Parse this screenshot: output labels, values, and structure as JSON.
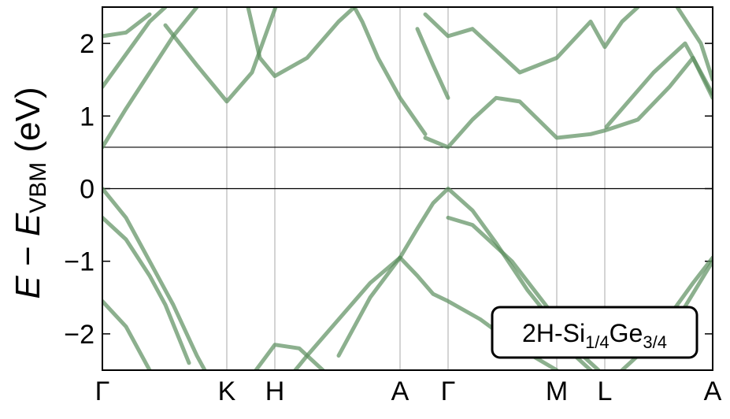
{
  "chart_data": {
    "type": "line",
    "ylabel": [
      "E",
      " − ",
      "E",
      "VBM",
      " (eV)"
    ],
    "annotation": [
      "2H-Si",
      "1/4",
      "Ge",
      "3/4"
    ],
    "color": "#5b8f5e",
    "xlim": [
      0,
      7.75
    ],
    "ylim": [
      -2.5,
      2.5
    ],
    "xticks": [
      {
        "value": 0,
        "label": "Γ"
      },
      {
        "value": 1.58,
        "label": "K"
      },
      {
        "value": 2.19,
        "label": "H"
      },
      {
        "value": 3.78,
        "label": "A"
      },
      {
        "value": 4.39,
        "label": "Γ"
      },
      {
        "value": 5.77,
        "label": "M"
      },
      {
        "value": 6.38,
        "label": "L"
      },
      {
        "value": 7.75,
        "label": "A"
      }
    ],
    "yticks": [
      {
        "value": -2,
        "label": "−2"
      },
      {
        "value": -1,
        "label": "−1"
      },
      0,
      1,
      2
    ],
    "reference_lines": [
      0,
      0.57
    ],
    "bands": [
      {
        "x": [
          0,
          0.3,
          0.6,
          0.9,
          1.2,
          1.3
        ],
        "y": [
          0,
          -0.4,
          -1.0,
          -1.6,
          -2.3,
          -2.5
        ]
      },
      {
        "x": [
          0,
          0.3,
          0.6,
          0.8,
          1.1
        ],
        "y": [
          -0.4,
          -0.7,
          -1.2,
          -1.6,
          -2.4
        ]
      },
      {
        "x": [
          0,
          0.3,
          0.5,
          0.6
        ],
        "y": [
          -1.55,
          -1.9,
          -2.3,
          -2.5
        ]
      },
      {
        "x": [
          3.78,
          4.0,
          4.2,
          4.39,
          4.7,
          5.0,
          5.4,
          5.77,
          6.0,
          6.2
        ],
        "y": [
          -0.95,
          -0.55,
          -0.2,
          0,
          -0.3,
          -0.75,
          -1.4,
          -1.9,
          -2.3,
          -2.5
        ]
      },
      {
        "x": [
          3.78,
          4.0,
          4.2,
          4.39,
          4.8,
          5.3,
          5.77
        ],
        "y": [
          -0.95,
          -1.2,
          -1.45,
          -1.55,
          -1.8,
          -2.2,
          -2.5
        ]
      },
      {
        "x": [
          2.45,
          2.6,
          3.0,
          3.4,
          3.78
        ],
        "y": [
          -2.5,
          -2.3,
          -1.8,
          -1.3,
          -0.95
        ]
      },
      {
        "x": [
          3.0,
          3.4,
          3.78
        ],
        "y": [
          -2.3,
          -1.5,
          -0.95
        ]
      },
      {
        "x": [
          4.39,
          4.7,
          5.2,
          5.77,
          6.1,
          6.3
        ],
        "y": [
          -0.4,
          -0.5,
          -1.0,
          -1.8,
          -2.3,
          -2.5
        ]
      },
      {
        "x": [
          1.95,
          2.19,
          2.5,
          2.8
        ],
        "y": [
          -2.5,
          -2.15,
          -2.2,
          -2.5
        ]
      },
      {
        "x": [
          6.6,
          6.8,
          7.1,
          7.5,
          7.75
        ],
        "y": [
          -2.5,
          -2.3,
          -1.9,
          -1.3,
          -0.95
        ]
      },
      {
        "x": [
          7.0,
          7.3,
          7.75
        ],
        "y": [
          -2.3,
          -1.8,
          -1.0
        ]
      },
      {
        "x": [
          4.1,
          4.39,
          4.7,
          5.0,
          5.3,
          5.77,
          6.2,
          6.38,
          6.8,
          7.2,
          7.5,
          7.75
        ],
        "y": [
          0.7,
          0.57,
          0.95,
          1.25,
          1.2,
          0.7,
          0.75,
          0.8,
          0.95,
          1.4,
          1.8,
          1.25
        ]
      },
      {
        "x": [
          3.2,
          3.3,
          3.5,
          3.78,
          4.1
        ],
        "y": [
          2.5,
          2.3,
          1.8,
          1.25,
          0.75
        ]
      },
      {
        "x": [
          0,
          0.3,
          0.6,
          0.9,
          1.2
        ],
        "y": [
          0.57,
          1.1,
          1.6,
          2.1,
          2.5
        ]
      },
      {
        "x": [
          0,
          0.4,
          0.6,
          0.8
        ],
        "y": [
          1.4,
          2.0,
          2.3,
          2.5
        ]
      },
      {
        "x": [
          0,
          0.3,
          0.6
        ],
        "y": [
          2.1,
          2.15,
          2.4
        ]
      },
      {
        "x": [
          0.8,
          1.2,
          1.58,
          1.9,
          2.1,
          2.2
        ],
        "y": [
          2.25,
          1.7,
          1.2,
          1.6,
          2.2,
          2.5
        ]
      },
      {
        "x": [
          1.85,
          2.0,
          2.19,
          2.6,
          3.0,
          3.2
        ],
        "y": [
          2.5,
          1.8,
          1.55,
          1.8,
          2.3,
          2.5
        ]
      },
      {
        "x": [
          4.1,
          4.39,
          4.7,
          5.3,
          5.77,
          6.2,
          6.38,
          6.6,
          6.8
        ],
        "y": [
          2.4,
          2.1,
          2.2,
          1.6,
          1.8,
          2.3,
          1.95,
          2.3,
          2.5
        ]
      },
      {
        "x": [
          4.0,
          4.2,
          4.39
        ],
        "y": [
          2.2,
          1.7,
          1.25
        ]
      },
      {
        "x": [
          6.4,
          7.0,
          7.4,
          7.75
        ],
        "y": [
          0.85,
          1.6,
          2.0,
          1.3
        ]
      },
      {
        "x": [
          7.3,
          7.6,
          7.75
        ],
        "y": [
          2.5,
          2.0,
          1.5
        ]
      }
    ]
  }
}
